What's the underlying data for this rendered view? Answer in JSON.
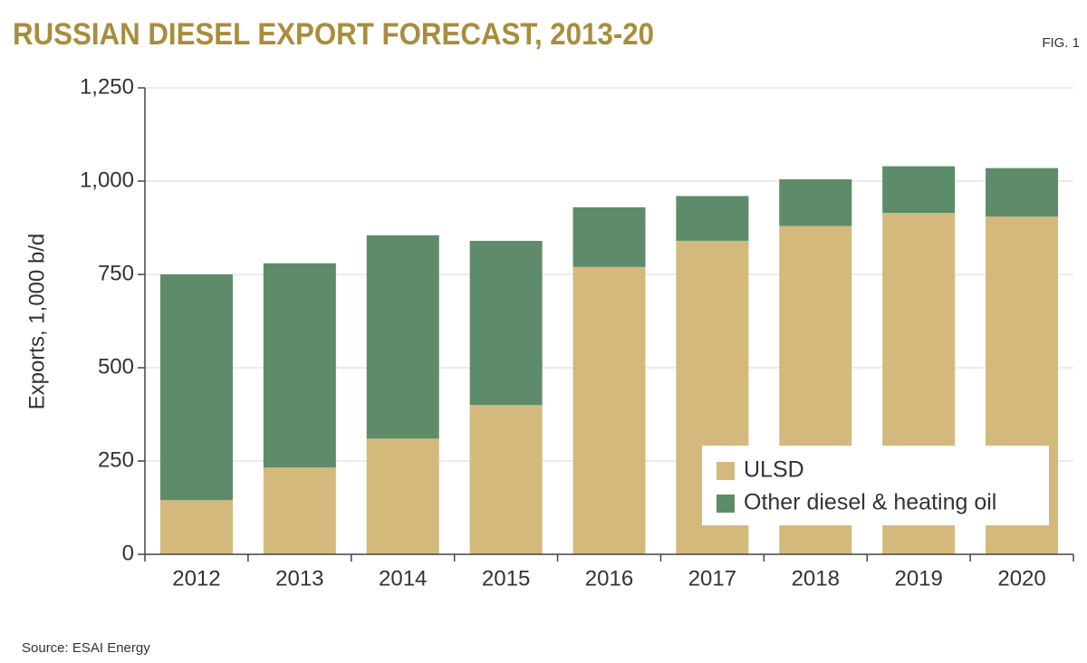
{
  "chart_data": {
    "type": "stacked-bar",
    "title": "RUSSIAN DIESEL EXPORT FORECAST, 2013-20",
    "figure_label": "FIG. 1",
    "y_label": "Exports, 1,000 b/d",
    "source": "Source: ESAI Energy",
    "categories": [
      "2012",
      "2013",
      "2014",
      "2015",
      "2016",
      "2017",
      "2018",
      "2019",
      "2020"
    ],
    "series": [
      {
        "name": "ULSD",
        "color": "#d3b97b",
        "values": [
          145,
          233,
          310,
          400,
          770,
          840,
          880,
          915,
          905
        ]
      },
      {
        "name": "Other diesel & heating oil",
        "color": "#5e8b69",
        "values": [
          605,
          547,
          545,
          440,
          160,
          120,
          125,
          125,
          130
        ]
      }
    ],
    "ylim": [
      0,
      1250
    ],
    "yticks": [
      0,
      250,
      500,
      750,
      {
        "value": 1000,
        "label": "1,000"
      },
      {
        "value": 1250,
        "label": "1,250"
      }
    ],
    "grid": true,
    "legend": "lower right"
  }
}
